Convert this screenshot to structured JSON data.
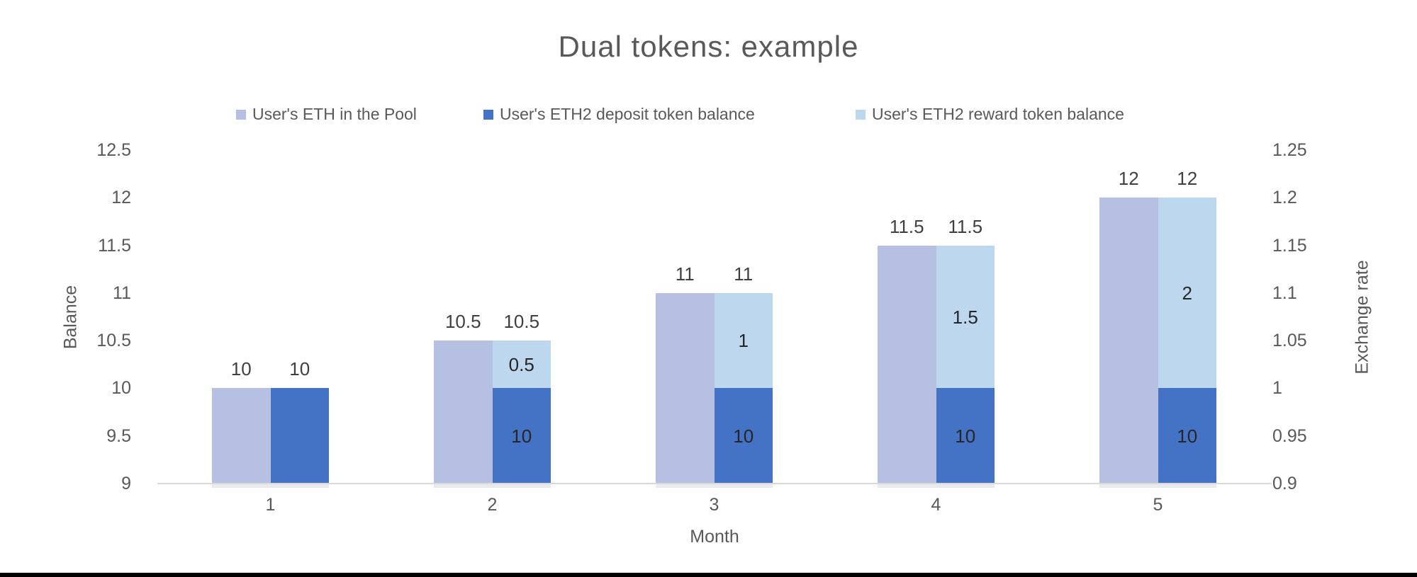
{
  "title": "Dual tokens: example",
  "legend": [
    {
      "label": "User's ETH in the Pool",
      "color": "#b6c0e2"
    },
    {
      "label": "User's ETH2 deposit token balance",
      "color": "#4472c4"
    },
    {
      "label": "User's ETH2 reward token balance",
      "color": "#bdd7ee"
    }
  ],
  "axes": {
    "left_title": "Balance",
    "right_title": "Exchange rate",
    "x_title": "Month",
    "left_ticks": [
      "12.5",
      "12",
      "11.5",
      "11",
      "10.5",
      "10",
      "9.5",
      "9"
    ],
    "right_ticks": [
      "1.25",
      "1.2",
      "1.15",
      "1.1",
      "1.05",
      "1",
      "0.95",
      "0.9"
    ],
    "x_ticks": [
      "1",
      "2",
      "3",
      "4",
      "5"
    ]
  },
  "chart_data": {
    "type": "bar",
    "title": "Dual tokens: example",
    "xlabel": "Month",
    "ylabel_left": "Balance",
    "ylabel_right": "Exchange rate",
    "categories": [
      1,
      2,
      3,
      4,
      5
    ],
    "bar_base": 9,
    "ylim_left": [
      9,
      12.5
    ],
    "ylim_right": [
      0.9,
      1.25
    ],
    "grid": false,
    "legend_position": "top",
    "series": [
      {
        "name": "User's ETH in the Pool",
        "color": "#b6c0e2",
        "stack": "pool",
        "values": [
          10,
          10.5,
          11,
          11.5,
          12
        ]
      },
      {
        "name": "User's ETH2 deposit token balance",
        "color": "#4472c4",
        "stack": "tokens",
        "values": [
          10,
          10,
          10,
          10,
          10
        ]
      },
      {
        "name": "User's ETH2 reward token balance",
        "color": "#bdd7ee",
        "stack": "tokens",
        "values": [
          0,
          0.5,
          1,
          1.5,
          2
        ]
      }
    ],
    "top_labels": [
      [
        "10",
        "10"
      ],
      [
        "10.5",
        "10.5"
      ],
      [
        "11",
        "11"
      ],
      [
        "11.5",
        "11.5"
      ],
      [
        "12",
        "12"
      ]
    ],
    "inside_labels": {
      "deposit": [
        "",
        "10",
        "10",
        "10",
        "10"
      ],
      "reward": [
        "",
        "0.5",
        "1",
        "1.5",
        "2"
      ]
    }
  }
}
